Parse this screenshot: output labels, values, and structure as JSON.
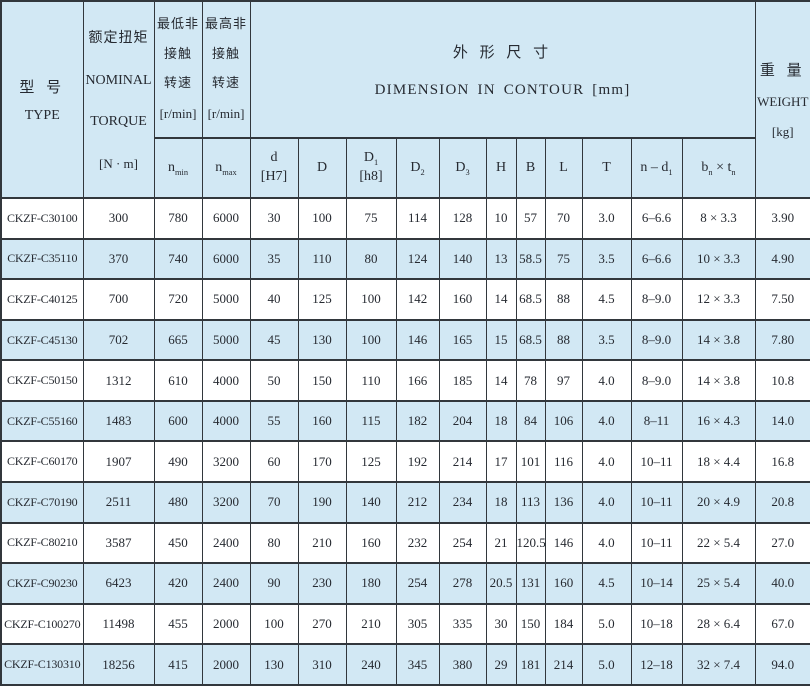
{
  "colors": {
    "band_blue": "#d2e8f4",
    "border": "#32373c",
    "text": "#262a31"
  },
  "table": {
    "header": {
      "type_zh": "型 号",
      "type_en": "TYPE",
      "torque_lines": [
        "额定扭矩",
        "NOMINAL",
        "TORQUE",
        "[N · m]"
      ],
      "nmin_lines": [
        "最低非",
        "接触",
        "转速",
        "[r/min]"
      ],
      "nmax_lines": [
        "最高非",
        "接触",
        "转速",
        "[r/min]"
      ],
      "dimension_zh": "外 形 尺 寸",
      "dimension_en": "DIMENSION IN CONTOUR [mm]",
      "weight_zh": "重 量",
      "weight_en": "WEIGHT",
      "weight_unit": "[kg]",
      "subheaders": [
        "n~min~",
        "n~max~",
        "d\n[H7]",
        "D",
        "D~1~\n[h8]",
        "D~2~",
        "D~3~",
        "H",
        "B",
        "L",
        "T",
        "n – d~1~",
        "b~n~ × t~n~"
      ]
    },
    "column_keys": [
      "type",
      "torque",
      "n-min",
      "n-max",
      "d",
      "D",
      "D1",
      "D2",
      "D3",
      "H",
      "B",
      "L",
      "T",
      "n-d1",
      "bn-tn",
      "weight"
    ],
    "rows": [
      {
        "type": "CKZF-C30100",
        "values": [
          "300",
          "780",
          "6000",
          "30",
          "100",
          "75",
          "114",
          "128",
          "10",
          "57",
          "70",
          "3.0",
          "6–6.6",
          "8 × 3.3",
          "3.90"
        ]
      },
      {
        "type": "CKZF-C35110",
        "values": [
          "370",
          "740",
          "6000",
          "35",
          "110",
          "80",
          "124",
          "140",
          "13",
          "58.5",
          "75",
          "3.5",
          "6–6.6",
          "10 × 3.3",
          "4.90"
        ]
      },
      {
        "type": "CKZF-C40125",
        "values": [
          "700",
          "720",
          "5000",
          "40",
          "125",
          "100",
          "142",
          "160",
          "14",
          "68.5",
          "88",
          "4.5",
          "8–9.0",
          "12 × 3.3",
          "7.50"
        ]
      },
      {
        "type": "CKZF-C45130",
        "values": [
          "702",
          "665",
          "5000",
          "45",
          "130",
          "100",
          "146",
          "165",
          "15",
          "68.5",
          "88",
          "3.5",
          "8–9.0",
          "14 × 3.8",
          "7.80"
        ]
      },
      {
        "type": "CKZF-C50150",
        "values": [
          "1312",
          "610",
          "4000",
          "50",
          "150",
          "110",
          "166",
          "185",
          "14",
          "78",
          "97",
          "4.0",
          "8–9.0",
          "14 × 3.8",
          "10.8"
        ]
      },
      {
        "type": "CKZF-C55160",
        "values": [
          "1483",
          "600",
          "4000",
          "55",
          "160",
          "115",
          "182",
          "204",
          "18",
          "84",
          "106",
          "4.0",
          "8–11",
          "16 × 4.3",
          "14.0"
        ]
      },
      {
        "type": "CKZF-C60170",
        "values": [
          "1907",
          "490",
          "3200",
          "60",
          "170",
          "125",
          "192",
          "214",
          "17",
          "101",
          "116",
          "4.0",
          "10–11",
          "18 × 4.4",
          "16.8"
        ]
      },
      {
        "type": "CKZF-C70190",
        "values": [
          "2511",
          "480",
          "3200",
          "70",
          "190",
          "140",
          "212",
          "234",
          "18",
          "113",
          "136",
          "4.0",
          "10–11",
          "20 × 4.9",
          "20.8"
        ]
      },
      {
        "type": "CKZF-C80210",
        "values": [
          "3587",
          "450",
          "2400",
          "80",
          "210",
          "160",
          "232",
          "254",
          "21",
          "120.5",
          "146",
          "4.0",
          "10–11",
          "22 × 5.4",
          "27.0"
        ]
      },
      {
        "type": "CKZF-C90230",
        "values": [
          "6423",
          "420",
          "2400",
          "90",
          "230",
          "180",
          "254",
          "278",
          "20.5",
          "131",
          "160",
          "4.5",
          "10–14",
          "25 × 5.4",
          "40.0"
        ]
      },
      {
        "type": "CKZF-C100270",
        "values": [
          "11498",
          "455",
          "2000",
          "100",
          "270",
          "210",
          "305",
          "335",
          "30",
          "150",
          "184",
          "5.0",
          "10–18",
          "28 × 6.4",
          "67.0"
        ]
      },
      {
        "type": "CKZF-C130310",
        "values": [
          "18256",
          "415",
          "2000",
          "130",
          "310",
          "240",
          "345",
          "380",
          "29",
          "181",
          "214",
          "5.0",
          "12–18",
          "32 × 7.4",
          "94.0"
        ]
      }
    ]
  }
}
